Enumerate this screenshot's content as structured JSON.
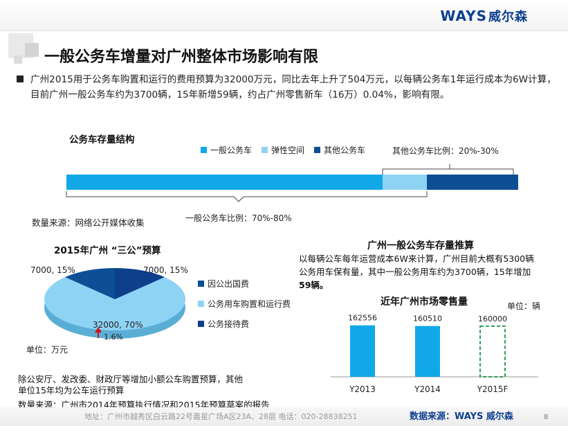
{
  "logo": {
    "text": "WAYS",
    "cn": "威尔森"
  },
  "title": "一般公务车增量对广州整体市场影响有限",
  "paragraph": "广州2015用于公务车购置和运行的费用预算为32000万元，同比去年上升了504万元，以每辆公务车1年运行成本为6W计算，目前广州一般公务车约为3700辆，15年新增59辆，约占广州零售新车（16万）0.04%，影响有限。",
  "stock": {
    "title": "公务车存量结构",
    "legend": [
      "一般公务车",
      "弹性空间",
      "其他公务车"
    ],
    "colors": [
      "#11a8e8",
      "#8ed3f4",
      "#0d4f94"
    ],
    "other_ratio": "其他公务车比例：20%-30%",
    "general_ratio": "一般公务车比例：70%-80%",
    "source": "数量来源：网络公开媒体收集"
  },
  "budget": {
    "title": "2015年广州 “三公”预算",
    "labels": {
      "top_left": "7000, 15%",
      "top_right": "7000, 15%",
      "main": "32000, 70%",
      "arrow": "1.6%"
    },
    "legend": [
      "因公出国费",
      "公务用车购置和运行费",
      "公务接待费"
    ],
    "colors": [
      "#0d4f94",
      "#8ed3f4",
      "#0d3f8a"
    ],
    "unit": "单位：万元",
    "note1": "除公安厅、发改委、财政厅等增加小额公车购置预算，其他",
    "note2": "单位15年均为公车运行预算",
    "source": "数量来源：广州市2014年预算执行情况和2015年预算草案的报告"
  },
  "estimate": {
    "title": "广州一般公务车存量推算",
    "line1": "以每辆公车每年运营成本6W来计算，广州目前大概有5300辆",
    "line2": "公务用车保有量，其中一般公务用车约为3700辆，15年增加",
    "line3": "59辆。"
  },
  "chart_data": {
    "type": "bar",
    "title": "近年广州市场零售量",
    "unit": "单位：辆",
    "categories": [
      "Y2013",
      "Y2014",
      "Y2015F"
    ],
    "values": [
      162556,
      160510,
      160000
    ],
    "labels": [
      "162556",
      "160510",
      "160000"
    ],
    "ylim": [
      0,
      175000
    ],
    "colors": [
      "#11a8e8",
      "#11a8e8",
      "dashed-green"
    ]
  },
  "footer": {
    "address": "地址：广州市越秀区白云路22号嘉星广场A区23A、28层   电话：020-28838251",
    "source_label": "数据来源：",
    "page": "8"
  }
}
